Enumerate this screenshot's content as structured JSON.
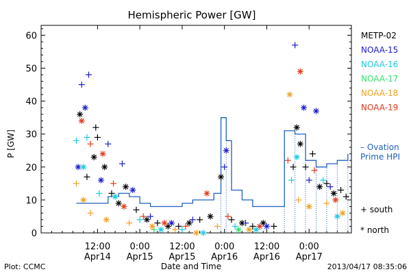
{
  "chart_data": {
    "type": "scatter",
    "title": "Hemispheric Power [GW]",
    "ylabel": "P [GW]",
    "xlabel": "Date and Time",
    "ylim": [
      0,
      63
    ],
    "yticks": [
      0,
      10,
      20,
      30,
      40,
      50,
      60
    ],
    "xlim": [
      "2013-04-13T20:00",
      "2013-04-17T12:00"
    ],
    "xticks": [
      {
        "t": "2013-04-14T12:00",
        "time": "12:00",
        "date": "Apr14"
      },
      {
        "t": "2013-04-15T00:00",
        "time": "0:00",
        "date": "Apr15"
      },
      {
        "t": "2013-04-15T12:00",
        "time": "12:00",
        "date": "Apr15"
      },
      {
        "t": "2013-04-16T00:00",
        "time": "0:00",
        "date": "Apr16"
      },
      {
        "t": "2013-04-16T12:00",
        "time": "12:00",
        "date": "Apr16"
      },
      {
        "t": "2013-04-17T00:00",
        "time": "0:00",
        "date": "Apr17"
      }
    ],
    "grid": false,
    "legend_position": "right",
    "symbols": [
      {
        "label": "+ south",
        "marker": "plus"
      },
      {
        "label": "* north",
        "marker": "asterisk"
      }
    ],
    "series": [
      {
        "name": "METP-02",
        "color": "#000000",
        "points": [
          {
            "t": "2013-04-14T07:00",
            "v": 36,
            "m": "north"
          },
          {
            "t": "2013-04-14T09:00",
            "v": 17,
            "m": "south"
          },
          {
            "t": "2013-04-14T11:00",
            "v": 23,
            "m": "north"
          },
          {
            "t": "2013-04-14T11:30",
            "v": 32,
            "m": "south"
          },
          {
            "t": "2013-04-14T12:00",
            "v": 29,
            "m": "south"
          },
          {
            "t": "2013-04-14T14:00",
            "v": 20,
            "m": "north"
          },
          {
            "t": "2013-04-14T16:00",
            "v": 12,
            "m": "south"
          },
          {
            "t": "2013-04-14T18:00",
            "v": 9,
            "m": "north"
          },
          {
            "t": "2013-04-14T20:00",
            "v": 14,
            "m": "north"
          },
          {
            "t": "2013-04-14T23:00",
            "v": 7,
            "m": "south"
          },
          {
            "t": "2013-04-15T02:00",
            "v": 4,
            "m": "north"
          },
          {
            "t": "2013-04-15T05:00",
            "v": 3,
            "m": "south"
          },
          {
            "t": "2013-04-15T08:00",
            "v": 2,
            "m": "north"
          },
          {
            "t": "2013-04-15T11:00",
            "v": 2,
            "m": "south"
          },
          {
            "t": "2013-04-15T14:00",
            "v": 3,
            "m": "north"
          },
          {
            "t": "2013-04-15T17:00",
            "v": 4,
            "m": "south"
          },
          {
            "t": "2013-04-15T20:00",
            "v": 5,
            "m": "north"
          },
          {
            "t": "2013-04-15T23:00",
            "v": 17,
            "m": "north"
          },
          {
            "t": "2013-04-16T02:00",
            "v": 4,
            "m": "south"
          },
          {
            "t": "2013-04-16T05:00",
            "v": 3,
            "m": "north"
          },
          {
            "t": "2013-04-16T08:00",
            "v": 2,
            "m": "south"
          },
          {
            "t": "2013-04-16T11:00",
            "v": 3,
            "m": "north"
          },
          {
            "t": "2013-04-16T14:00",
            "v": 2,
            "m": "south"
          },
          {
            "t": "2013-04-16T19:30",
            "v": 20,
            "m": "south"
          },
          {
            "t": "2013-04-16T20:30",
            "v": 32,
            "m": "north"
          },
          {
            "t": "2013-04-16T21:30",
            "v": 27,
            "m": "north"
          },
          {
            "t": "2013-04-16T23:00",
            "v": 20,
            "m": "south"
          },
          {
            "t": "2013-04-17T01:00",
            "v": 24,
            "m": "south"
          },
          {
            "t": "2013-04-17T03:00",
            "v": 14,
            "m": "north"
          },
          {
            "t": "2013-04-17T05:00",
            "v": 15,
            "m": "south"
          },
          {
            "t": "2013-04-17T07:00",
            "v": 12,
            "m": "north"
          },
          {
            "t": "2013-04-17T09:00",
            "v": 13,
            "m": "south"
          },
          {
            "t": "2013-04-17T10:30",
            "v": 11,
            "m": "south"
          }
        ]
      },
      {
        "name": "NOAA-15",
        "color": "#1a1acc",
        "points": [
          {
            "t": "2013-04-14T06:30",
            "v": 20,
            "m": "north"
          },
          {
            "t": "2013-04-14T07:30",
            "v": 45,
            "m": "south"
          },
          {
            "t": "2013-04-14T08:30",
            "v": 38,
            "m": "north"
          },
          {
            "t": "2013-04-14T09:30",
            "v": 48,
            "m": "south"
          },
          {
            "t": "2013-04-14T13:00",
            "v": 16,
            "m": "north"
          },
          {
            "t": "2013-04-14T15:00",
            "v": 27,
            "m": "south"
          },
          {
            "t": "2013-04-14T19:00",
            "v": 21,
            "m": "south"
          },
          {
            "t": "2013-04-14T22:00",
            "v": 13,
            "m": "north"
          },
          {
            "t": "2013-04-15T03:00",
            "v": 5,
            "m": "south"
          },
          {
            "t": "2013-04-15T09:00",
            "v": 3,
            "m": "north"
          },
          {
            "t": "2013-04-15T15:00",
            "v": 4,
            "m": "south"
          },
          {
            "t": "2013-04-16T00:00",
            "v": 20,
            "m": "south"
          },
          {
            "t": "2013-04-16T00:30",
            "v": 25,
            "m": "north"
          },
          {
            "t": "2013-04-16T06:00",
            "v": 3,
            "m": "south"
          },
          {
            "t": "2013-04-16T12:00",
            "v": 2,
            "m": "north"
          },
          {
            "t": "2013-04-16T20:00",
            "v": 57,
            "m": "south"
          },
          {
            "t": "2013-04-16T22:30",
            "v": 38,
            "m": "north"
          },
          {
            "t": "2013-04-17T00:00",
            "v": 16,
            "m": "south"
          },
          {
            "t": "2013-04-17T02:00",
            "v": 37,
            "m": "north"
          },
          {
            "t": "2013-04-17T06:00",
            "v": 14,
            "m": "south"
          }
        ]
      },
      {
        "name": "NOAA-16",
        "color": "#18c8e0",
        "points": [
          {
            "t": "2013-04-14T06:00",
            "v": 28,
            "m": "south"
          },
          {
            "t": "2013-04-14T08:00",
            "v": 20,
            "m": "north"
          },
          {
            "t": "2013-04-14T09:00",
            "v": 29,
            "m": "south"
          },
          {
            "t": "2013-04-14T12:30",
            "v": 12,
            "m": "south"
          },
          {
            "t": "2013-04-14T17:00",
            "v": 11,
            "m": "north"
          },
          {
            "t": "2013-04-15T00:00",
            "v": 4,
            "m": "south"
          },
          {
            "t": "2013-04-15T06:00",
            "v": 1,
            "m": "north"
          },
          {
            "t": "2013-04-15T12:00",
            "v": 1,
            "m": "south"
          },
          {
            "t": "2013-04-15T18:00",
            "v": 0,
            "m": "north"
          },
          {
            "t": "2013-04-16T03:00",
            "v": 2,
            "m": "south"
          },
          {
            "t": "2013-04-16T09:00",
            "v": 1,
            "m": "north"
          },
          {
            "t": "2013-04-16T19:00",
            "v": 16,
            "m": "south"
          },
          {
            "t": "2013-04-16T20:30",
            "v": 23,
            "m": "north"
          },
          {
            "t": "2013-04-17T04:00",
            "v": 16,
            "m": "south"
          },
          {
            "t": "2013-04-17T08:00",
            "v": 5,
            "m": "north"
          }
        ]
      },
      {
        "name": "NOAA-17",
        "color": "#33e06a",
        "points": [
          {
            "t": "2013-04-15T04:00",
            "v": 1,
            "m": "south"
          },
          {
            "t": "2013-04-16T04:00",
            "v": 1,
            "m": "north"
          }
        ]
      },
      {
        "name": "NOAA-18",
        "color": "#f0a020",
        "points": [
          {
            "t": "2013-04-14T06:00",
            "v": 15,
            "m": "south"
          },
          {
            "t": "2013-04-14T08:00",
            "v": 10,
            "m": "north"
          },
          {
            "t": "2013-04-14T10:00",
            "v": 6,
            "m": "south"
          },
          {
            "t": "2013-04-14T14:30",
            "v": 4,
            "m": "north"
          },
          {
            "t": "2013-04-14T21:00",
            "v": 3,
            "m": "south"
          },
          {
            "t": "2013-04-15T03:30",
            "v": 2,
            "m": "north"
          },
          {
            "t": "2013-04-15T10:00",
            "v": 1,
            "m": "south"
          },
          {
            "t": "2013-04-15T16:00",
            "v": 0,
            "m": "north"
          },
          {
            "t": "2013-04-15T22:00",
            "v": 2,
            "m": "south"
          },
          {
            "t": "2013-04-16T07:00",
            "v": 1,
            "m": "north"
          },
          {
            "t": "2013-04-16T18:30",
            "v": 42,
            "m": "north"
          },
          {
            "t": "2013-04-16T21:00",
            "v": 10,
            "m": "south"
          },
          {
            "t": "2013-04-17T00:00",
            "v": 8,
            "m": "north"
          },
          {
            "t": "2013-04-17T05:00",
            "v": 9,
            "m": "south"
          },
          {
            "t": "2013-04-17T09:30",
            "v": 6,
            "m": "north"
          }
        ]
      },
      {
        "name": "NOAA-19",
        "color": "#e03a1a",
        "points": [
          {
            "t": "2013-04-14T07:30",
            "v": 34,
            "m": "north"
          },
          {
            "t": "2013-04-14T10:00",
            "v": 27,
            "m": "south"
          },
          {
            "t": "2013-04-14T13:30",
            "v": 24,
            "m": "north"
          },
          {
            "t": "2013-04-14T16:30",
            "v": 15,
            "m": "south"
          },
          {
            "t": "2013-04-14T19:30",
            "v": 8,
            "m": "north"
          },
          {
            "t": "2013-04-15T01:00",
            "v": 5,
            "m": "south"
          },
          {
            "t": "2013-04-15T07:00",
            "v": 3,
            "m": "north"
          },
          {
            "t": "2013-04-15T13:00",
            "v": 2,
            "m": "south"
          },
          {
            "t": "2013-04-15T19:00",
            "v": 12,
            "m": "north"
          },
          {
            "t": "2013-04-16T01:00",
            "v": 5,
            "m": "south"
          },
          {
            "t": "2013-04-16T10:00",
            "v": 2,
            "m": "north"
          },
          {
            "t": "2013-04-16T18:00",
            "v": 22,
            "m": "south"
          },
          {
            "t": "2013-04-16T21:30",
            "v": 49,
            "m": "north"
          },
          {
            "t": "2013-04-17T01:30",
            "v": 19,
            "m": "south"
          },
          {
            "t": "2013-04-17T07:30",
            "v": 10,
            "m": "north"
          }
        ]
      },
      {
        "name": "– Ovation Prime HPI",
        "color": "#1f5fbf",
        "line": [
          [
            "2013-04-14T06:00",
            9
          ],
          [
            "2013-04-14T12:00",
            9
          ],
          [
            "2013-04-14T15:00",
            11
          ],
          [
            "2013-04-14T18:00",
            12
          ],
          [
            "2013-04-14T21:00",
            11
          ],
          [
            "2013-04-15T00:00",
            9
          ],
          [
            "2013-04-15T03:00",
            8
          ],
          [
            "2013-04-15T06:00",
            8
          ],
          [
            "2013-04-15T09:00",
            8
          ],
          [
            "2013-04-15T12:00",
            9
          ],
          [
            "2013-04-15T15:00",
            10
          ],
          [
            "2013-04-15T18:00",
            10
          ],
          [
            "2013-04-15T21:00",
            12
          ],
          [
            "2013-04-15T23:00",
            35
          ],
          [
            "2013-04-16T00:30",
            28
          ],
          [
            "2013-04-16T02:00",
            13
          ],
          [
            "2013-04-16T05:00",
            10
          ],
          [
            "2013-04-16T08:00",
            8
          ],
          [
            "2013-04-16T11:00",
            8
          ],
          [
            "2013-04-16T14:00",
            8
          ],
          [
            "2013-04-16T17:00",
            31
          ],
          [
            "2013-04-16T20:00",
            30
          ],
          [
            "2013-04-16T23:00",
            22
          ],
          [
            "2013-04-17T02:00",
            20
          ],
          [
            "2013-04-17T05:00",
            21
          ],
          [
            "2013-04-17T08:00",
            22
          ],
          [
            "2013-04-17T11:00",
            24
          ]
        ]
      }
    ],
    "legend": {
      "entries": [
        "METP-02",
        "NOAA-15",
        "NOAA-16",
        "NOAA-17",
        "NOAA-18",
        "NOAA-19"
      ],
      "ovation_lines": [
        "– Ovation",
        "Prime HPI"
      ]
    },
    "footer_left": "Plot: CCMC",
    "footer_right": "2013/04/17 08:35:06"
  }
}
